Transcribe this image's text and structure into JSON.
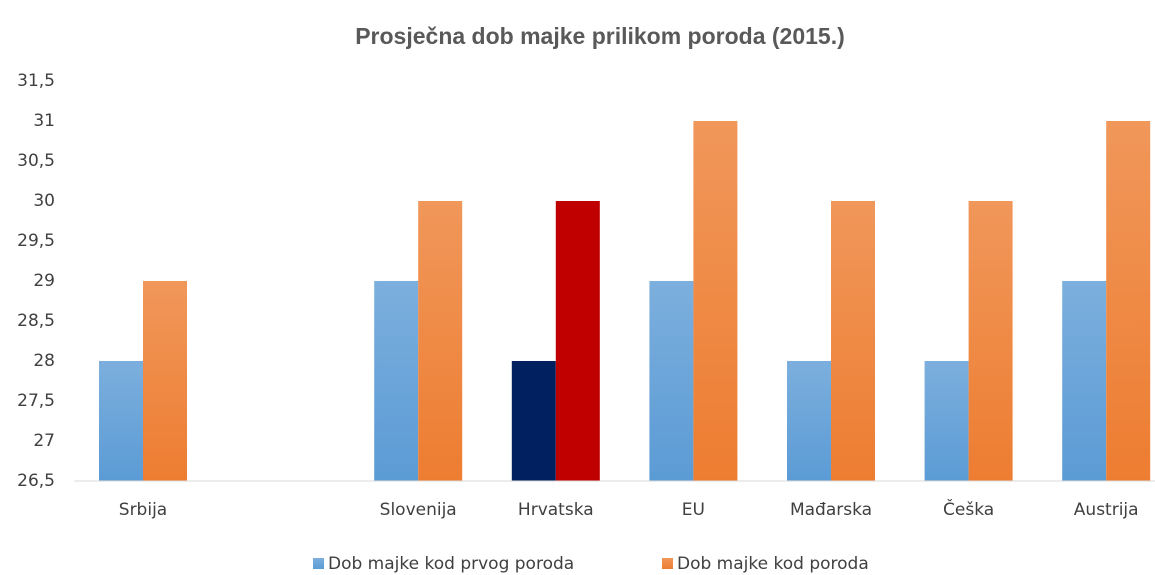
{
  "chart_data": {
    "type": "bar",
    "title": "Prosječna dob majke prilikom poroda (2015.)",
    "categories": [
      "Srbija",
      null,
      "Slovenija",
      "Hrvatska",
      "EU",
      "Mađarska",
      "Češka",
      "Austrija"
    ],
    "series": [
      {
        "name": "Dob majke kod prvog poroda",
        "color": "#5b9bd5",
        "point_colors": {
          "3": "#002060"
        },
        "values": [
          28,
          null,
          29,
          28,
          29,
          28,
          28,
          29
        ]
      },
      {
        "name": "Dob majke kod poroda",
        "color": "#ed7d31",
        "point_colors": {
          "3": "#c00000"
        },
        "values": [
          29,
          null,
          30,
          30,
          31,
          30,
          30,
          31
        ]
      }
    ],
    "ylim": [
      26.5,
      31.5
    ],
    "yticks": [
      {
        "value": 26.5,
        "label": "26,5"
      },
      27,
      {
        "value": 27.5,
        "label": "27,5"
      },
      28,
      {
        "value": 28.5,
        "label": "28,5"
      },
      29,
      {
        "value": 29.5,
        "label": "29,5"
      },
      30,
      {
        "value": 30.5,
        "label": "30,5"
      },
      31,
      {
        "value": 31.5,
        "label": "31,5"
      }
    ],
    "grid": false,
    "legend": "bottom"
  }
}
